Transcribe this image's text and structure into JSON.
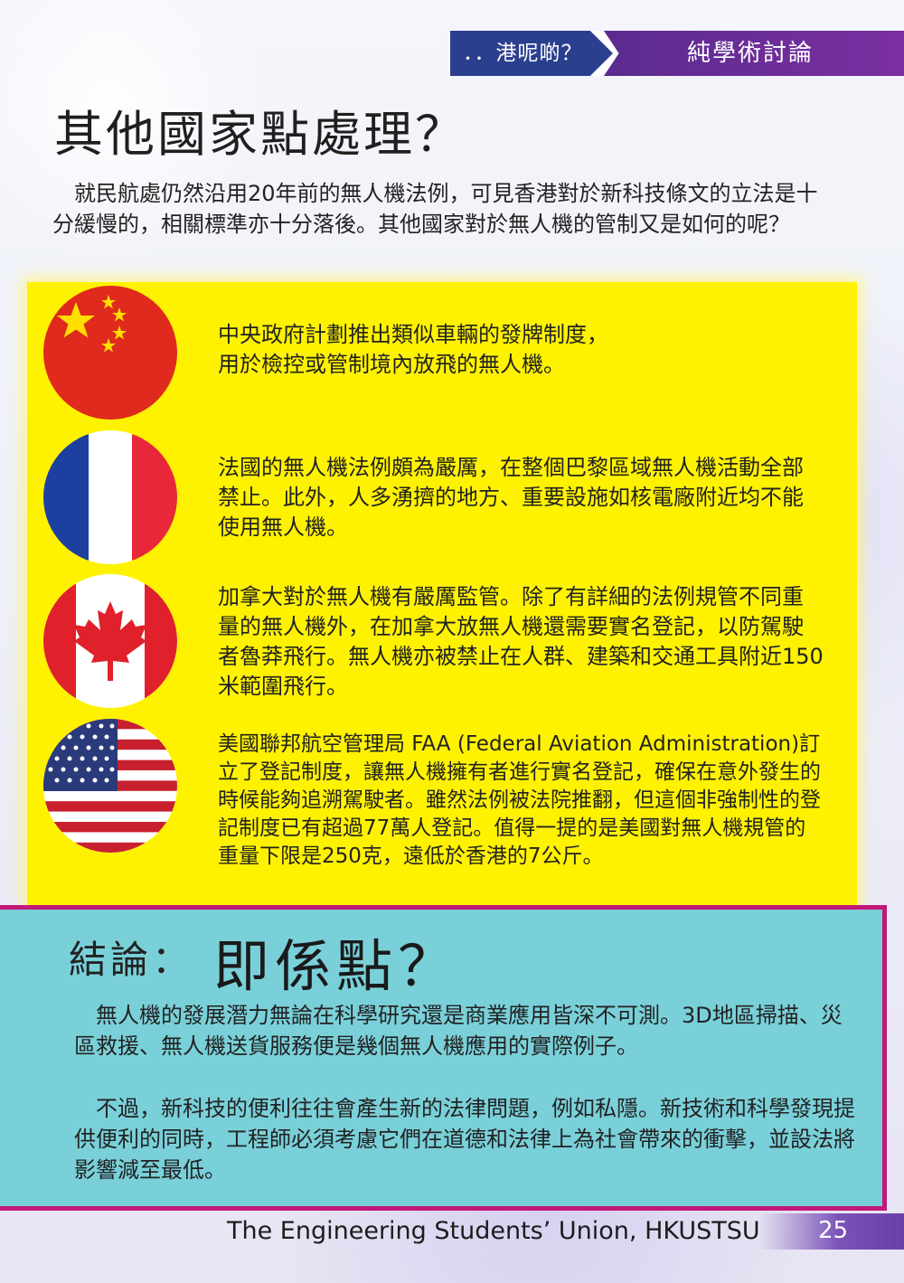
{
  "header": {
    "left_label": "．．港呢啲？",
    "right_label": "純學術討論"
  },
  "title": "其他國家點處理？",
  "intro": "　就民航處仍然沿用20年前的無人機法例，可見香港對於新科技條文的立法是十分緩慢的，相關標準亦十分落後。其他國家對於無人機的管制又是如何的呢？",
  "countries": [
    {
      "flag": "china-flag",
      "text": "中央政府計劃推出類似車輛的發牌制度，\n用於檢控或管制境內放飛的無人機。"
    },
    {
      "flag": "france-flag",
      "text": "法國的無人機法例頗為嚴厲，在整個巴黎區域無人機活動全部禁止。此外，人多湧擠的地方、重要設施如核電廠附近均不能使用無人機。"
    },
    {
      "flag": "canada-flag",
      "text": "加拿大對於無人機有嚴厲監管。除了有詳細的法例規管不同重量的無人機外，在加拿大放無人機還需要實名登記，以防駕駛者魯莽飛行。無人機亦被禁止在人群、建築和交通工具附近150米範圍飛行。"
    },
    {
      "flag": "usa-flag",
      "text": "美國聯邦航空管理局 FAA (Federal Aviation Administration)訂立了登記制度，讓無人機擁有者進行實名登記，確保在意外發生的時候能夠追溯駕駛者。雖然法例被法院推翻，但這個非強制性的登記制度已有超過77萬人登記。值得一提的是美國對無人機規管的重量下限是250克，遠低於香港的7公斤。"
    }
  ],
  "conclusion": {
    "label": "結論：",
    "title": "即係點？",
    "paragraphs": [
      "　無人機的發展潛力無論在科學研究還是商業應用皆深不可測。3D地區掃描、災區救援、無人機送貨服務便是幾個無人機應用的實際例子。",
      "　不過，新科技的便利往往會產生新的法律問題，例如私隱。新技術和科學發現提供便利的同時，工程師必須考慮它們在道德和法律上為社會帶來的衝擊，並設法將影響減至最低。"
    ]
  },
  "footer": {
    "org": "The Engineering Students’ Union, HKUSTSU",
    "page": "25"
  },
  "colors": {
    "header_blue": "#2b3f8f",
    "header_purple": "#7a2fa0",
    "panel_yellow": "#fff200",
    "conclusion_cyan": "#7ad0d9",
    "conclusion_border": "#c2187a"
  }
}
